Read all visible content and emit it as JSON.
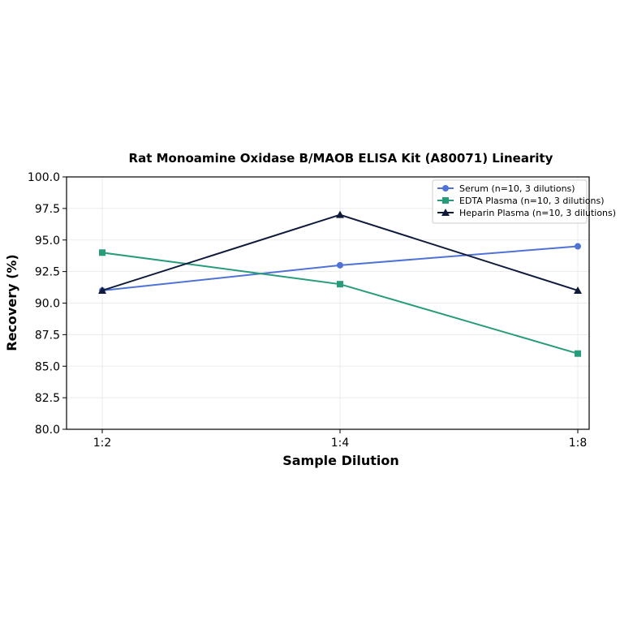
{
  "chart_data": {
    "type": "line",
    "title": "Rat Monoamine Oxidase B/MAOB ELISA Kit (A80071) Linearity",
    "xlabel": "Sample Dilution",
    "ylabel": "Recovery (%)",
    "categories": [
      "1:2",
      "1:4",
      "1:8"
    ],
    "ylim": [
      80.0,
      100.0
    ],
    "yticks": [
      "80.0",
      "82.5",
      "85.0",
      "87.5",
      "90.0",
      "92.5",
      "95.0",
      "97.5",
      "100.0"
    ],
    "grid": true,
    "legend_position": "top-right",
    "series": [
      {
        "name": "Serum (n=10, 3 dilutions)",
        "values": [
          91.0,
          93.0,
          94.5
        ],
        "color": "#4f72d6",
        "marker": "circle"
      },
      {
        "name": "EDTA Plasma (n=10, 3 dilutions)",
        "values": [
          94.0,
          91.5,
          86.0
        ],
        "color": "#279c7a",
        "marker": "square"
      },
      {
        "name": "Heparin Plasma (n=10, 3 dilutions)",
        "values": [
          91.0,
          97.0,
          91.0
        ],
        "color": "#0f1a3a",
        "marker": "triangle"
      }
    ]
  }
}
